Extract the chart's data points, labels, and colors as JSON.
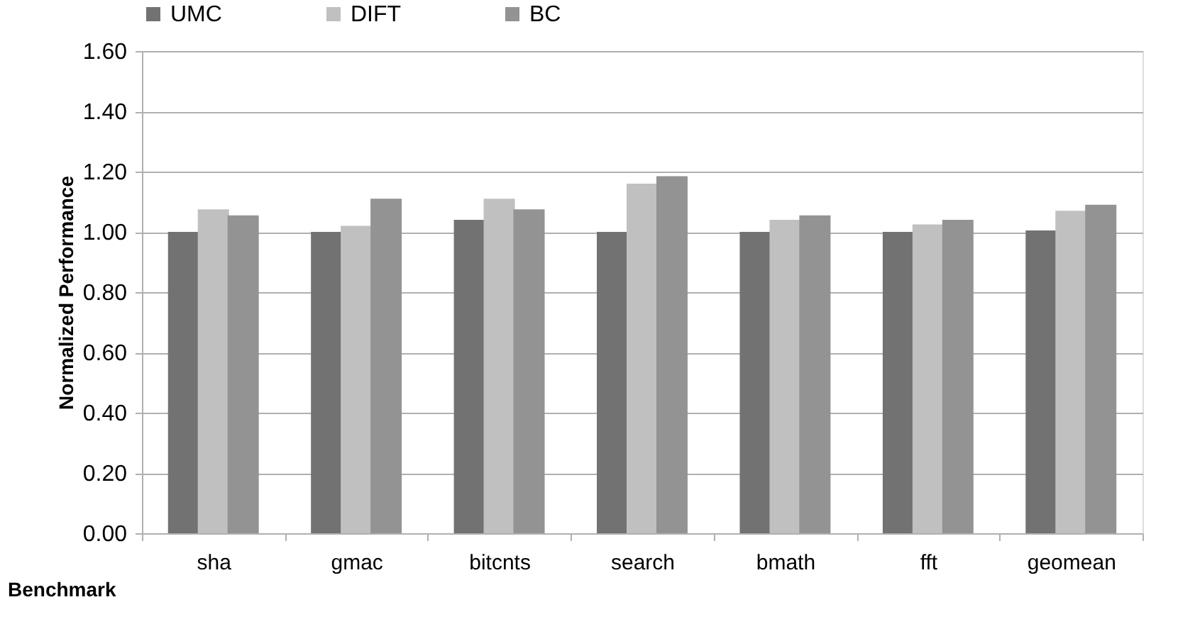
{
  "chart_data": {
    "type": "bar",
    "xlabel": "Benchmark",
    "ylabel": "Normalized Performance",
    "categories": [
      "sha",
      "gmac",
      "bitcnts",
      "search",
      "bmath",
      "fft",
      "geomean"
    ],
    "series": [
      {
        "name": "UMC",
        "color": "#727272",
        "values": [
          1.0,
          1.0,
          1.04,
          1.0,
          1.0,
          1.0,
          1.005
        ]
      },
      {
        "name": "DIFT",
        "color": "#c0c0c0",
        "values": [
          1.075,
          1.02,
          1.11,
          1.16,
          1.04,
          1.025,
          1.07
        ]
      },
      {
        "name": "BC",
        "color": "#939393",
        "values": [
          1.055,
          1.11,
          1.075,
          1.185,
          1.055,
          1.04,
          1.09
        ]
      }
    ],
    "ylim": [
      0,
      1.6
    ],
    "yticks": [
      {
        "value": 0,
        "label": "0.00"
      },
      {
        "value": 0.2,
        "label": "0.20"
      },
      {
        "value": 0.4,
        "label": "0.40"
      },
      {
        "value": 0.6,
        "label": "0.60"
      },
      {
        "value": 0.8,
        "label": "0.80"
      },
      {
        "value": 1.0,
        "label": "1.00"
      },
      {
        "value": 1.2,
        "label": "1.20"
      },
      {
        "value": 1.4,
        "label": "1.40"
      },
      {
        "value": 1.6,
        "label": "1.60"
      }
    ],
    "grid": "y",
    "legend": "top"
  }
}
